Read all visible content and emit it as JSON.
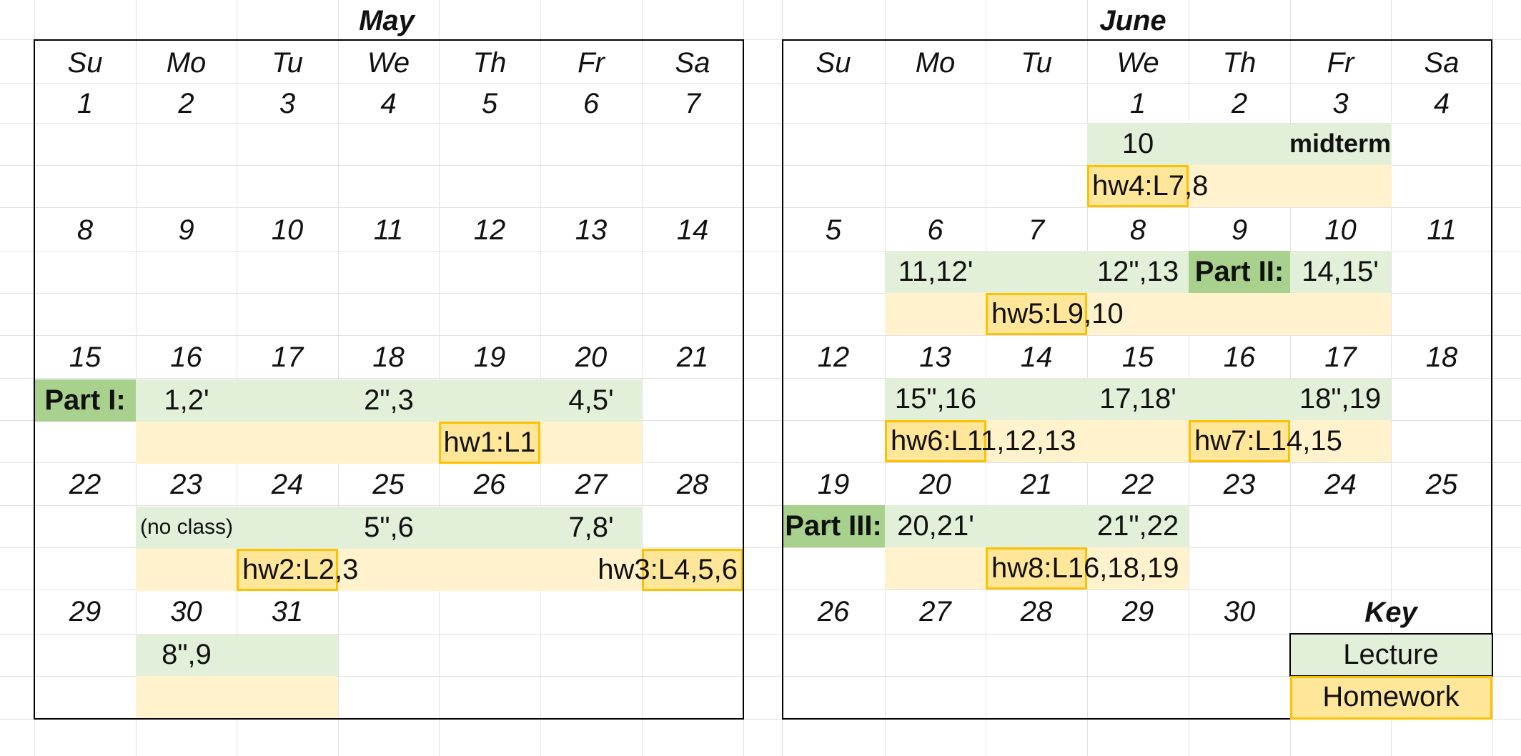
{
  "may": {
    "title": "May",
    "headers": [
      "Su",
      "Mo",
      "Tu",
      "We",
      "Th",
      "Fr",
      "Sa"
    ],
    "dates": [
      [
        "1",
        "2",
        "3",
        "4",
        "5",
        "6",
        "7"
      ],
      [
        "8",
        "9",
        "10",
        "11",
        "12",
        "13",
        "14"
      ],
      [
        "15",
        "16",
        "17",
        "18",
        "19",
        "20",
        "21"
      ],
      [
        "22",
        "23",
        "24",
        "25",
        "26",
        "27",
        "28"
      ],
      [
        "29",
        "30",
        "31",
        "",
        "",
        "",
        ""
      ]
    ],
    "part1_label": "Part I:",
    "lectures": {
      "w3_mo": "1,2'",
      "w3_we": "2\",3",
      "w3_fr": "4,5'",
      "w4_mo": "(no class)",
      "w4_we": "5\",6",
      "w4_fr": "7,8'",
      "w5_mo": "8\",9"
    },
    "homework": {
      "hw1": "hw1:L1",
      "hw2": "hw2:L2,3",
      "hw3": "hw3:L4,5,6"
    }
  },
  "june": {
    "title": "June",
    "headers": [
      "Su",
      "Mo",
      "Tu",
      "We",
      "Th",
      "Fr",
      "Sa"
    ],
    "dates": [
      [
        "",
        "",
        "",
        "1",
        "2",
        "3",
        "4"
      ],
      [
        "5",
        "6",
        "7",
        "8",
        "9",
        "10",
        "11"
      ],
      [
        "12",
        "13",
        "14",
        "15",
        "16",
        "17",
        "18"
      ],
      [
        "19",
        "20",
        "21",
        "22",
        "23",
        "24",
        "25"
      ],
      [
        "26",
        "27",
        "28",
        "29",
        "30",
        "",
        ""
      ]
    ],
    "midterm_label": "midterm",
    "part2_label": "Part II:",
    "part3_label": "Part III:",
    "lectures": {
      "w1_we": "10",
      "w2_mo": "11,12'",
      "w2_we": "12\",13",
      "w2_fr": "14,15'",
      "w3_mo": "15\",16",
      "w3_we": "17,18'",
      "w3_fr": "18\",19",
      "w4_mo": "20,21'",
      "w4_we": "21\",22"
    },
    "homework": {
      "hw4": "hw4:L7,8",
      "hw5": "hw5:L9,10",
      "hw6": "hw6:L11,12,13",
      "hw7": "hw7:L14,15",
      "hw8": "hw8:L16,18,19"
    }
  },
  "key": {
    "title": "Key",
    "lecture": "Lecture",
    "homework": "Homework"
  },
  "colors": {
    "lecture_fill": "#e2efd9",
    "part_label_fill": "#a9d18e",
    "homework_row_fill": "#fff2cc",
    "homework_due_fill": "#ffe699",
    "homework_due_border": "#ffc000"
  }
}
